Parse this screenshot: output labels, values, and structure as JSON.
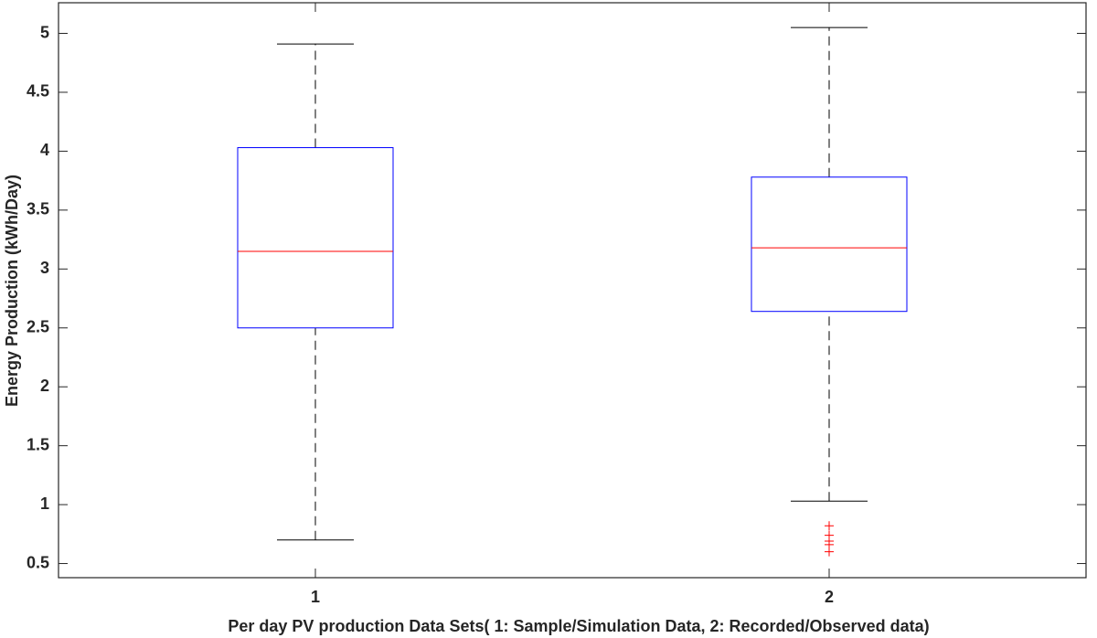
{
  "chart_data": {
    "type": "box",
    "xlabel": "Per day PV production Data Sets( 1: Sample/Simulation Data, 2: Recorded/Observed data)",
    "ylabel": "Energy Production (kWh/Day)",
    "categories": [
      "1",
      "2"
    ],
    "boxes": [
      {
        "whisker_low": 0.7,
        "q1": 2.5,
        "median": 3.15,
        "q3": 4.03,
        "whisker_high": 4.91,
        "outliers": []
      },
      {
        "whisker_low": 1.03,
        "q1": 2.64,
        "median": 3.18,
        "q3": 3.78,
        "whisker_high": 5.05,
        "outliers": [
          0.82,
          0.74,
          0.69,
          0.66,
          0.6
        ]
      }
    ],
    "box_color": "#0000ff",
    "median_color": "#ff0000",
    "whisker_color": "#000000",
    "outlier_color": "#ff0000",
    "ylim": [
      0.38,
      5.26
    ],
    "yticks": [
      0.5,
      1,
      1.5,
      2,
      2.5,
      3,
      3.5,
      4,
      4.5,
      5
    ]
  }
}
